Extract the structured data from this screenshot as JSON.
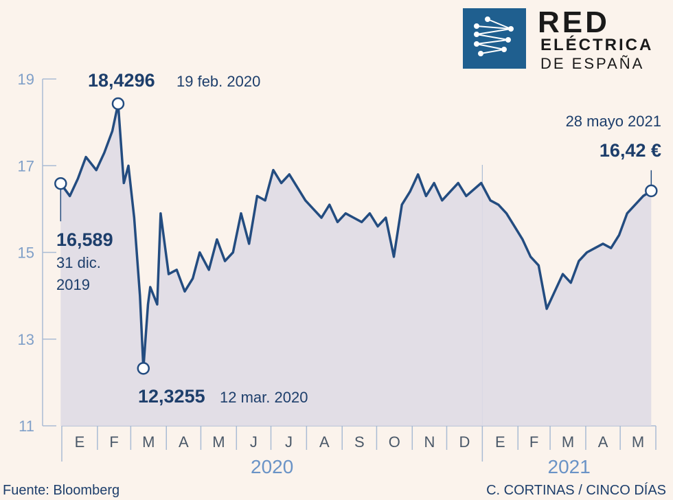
{
  "logo": {
    "line1": "RED",
    "line2": "ELÉCTRICA",
    "line3": "DE ESPAÑA"
  },
  "footer": {
    "source": "Fuente: Bloomberg",
    "credit": "C. CORTINAS / CINCO DÍAS"
  },
  "colors": {
    "line": "#234c80",
    "area": "#dfdbe5",
    "axis": "#a9bbd4",
    "background": "#fbf3ec"
  },
  "chart_data": {
    "type": "area",
    "title": "",
    "xlabel": "",
    "ylabel": "",
    "ylim": [
      11,
      19
    ],
    "yticks": [
      "19",
      "17",
      "15",
      "13",
      "11"
    ],
    "month_labels": [
      "E",
      "F",
      "M",
      "A",
      "M",
      "J",
      "J",
      "A",
      "S",
      "O",
      "N",
      "D",
      "E",
      "F",
      "M",
      "A",
      "M"
    ],
    "years": [
      "2020",
      "2021"
    ],
    "series": [
      {
        "x": [
          "2019-12-31",
          "2020-01-08",
          "2020-01-15",
          "2020-01-22",
          "2020-01-31",
          "2020-02-07",
          "2020-02-14",
          "2020-02-19",
          "2020-02-24",
          "2020-02-28",
          "2020-03-04",
          "2020-03-09",
          "2020-03-12",
          "2020-03-16",
          "2020-03-18",
          "2020-03-24",
          "2020-03-27",
          "2020-04-03",
          "2020-04-10",
          "2020-04-17",
          "2020-04-24",
          "2020-04-30",
          "2020-05-08",
          "2020-05-15",
          "2020-05-22",
          "2020-05-29",
          "2020-06-05",
          "2020-06-12",
          "2020-06-19",
          "2020-06-26",
          "2020-07-03",
          "2020-07-10",
          "2020-07-17",
          "2020-07-24",
          "2020-07-31",
          "2020-08-07",
          "2020-08-14",
          "2020-08-21",
          "2020-08-28",
          "2020-09-04",
          "2020-09-11",
          "2020-09-18",
          "2020-09-25",
          "2020-10-02",
          "2020-10-09",
          "2020-10-16",
          "2020-10-23",
          "2020-10-30",
          "2020-11-06",
          "2020-11-13",
          "2020-11-20",
          "2020-11-27",
          "2020-12-04",
          "2020-12-11",
          "2020-12-18",
          "2020-12-31",
          "2021-01-08",
          "2021-01-15",
          "2021-01-22",
          "2021-01-29",
          "2021-02-05",
          "2021-02-12",
          "2021-02-19",
          "2021-02-26",
          "2021-03-05",
          "2021-03-12",
          "2021-03-19",
          "2021-03-26",
          "2021-04-02",
          "2021-04-09",
          "2021-04-16",
          "2021-04-23",
          "2021-04-30",
          "2021-05-07",
          "2021-05-14",
          "2021-05-21",
          "2021-05-28"
        ],
        "values": [
          16.589,
          16.3,
          16.7,
          17.2,
          16.9,
          17.3,
          17.8,
          18.4296,
          16.6,
          17.0,
          15.8,
          14.0,
          12.3255,
          13.8,
          14.2,
          13.8,
          15.9,
          14.5,
          14.6,
          14.1,
          14.4,
          15.0,
          14.6,
          15.3,
          14.8,
          15.0,
          15.9,
          15.2,
          16.3,
          16.2,
          16.9,
          16.6,
          16.8,
          16.5,
          16.2,
          16.0,
          15.8,
          16.1,
          15.7,
          15.9,
          15.8,
          15.7,
          15.9,
          15.6,
          15.8,
          14.9,
          16.1,
          16.4,
          16.8,
          16.3,
          16.6,
          16.2,
          16.4,
          16.6,
          16.3,
          16.6,
          16.2,
          16.1,
          15.9,
          15.6,
          15.3,
          14.9,
          14.7,
          13.7,
          14.1,
          14.5,
          14.3,
          14.8,
          15.0,
          15.1,
          15.2,
          15.1,
          15.4,
          15.9,
          16.1,
          16.3,
          16.42
        ]
      }
    ],
    "annotations": [
      {
        "value": "16,589",
        "date": "31 dic.",
        "year": "2019"
      },
      {
        "value": "18,4296",
        "date": "19 feb. 2020"
      },
      {
        "value": "12,3255",
        "date": "12 mar. 2020"
      },
      {
        "value": "16,42 €",
        "date": "28 mayo 2021"
      }
    ]
  }
}
